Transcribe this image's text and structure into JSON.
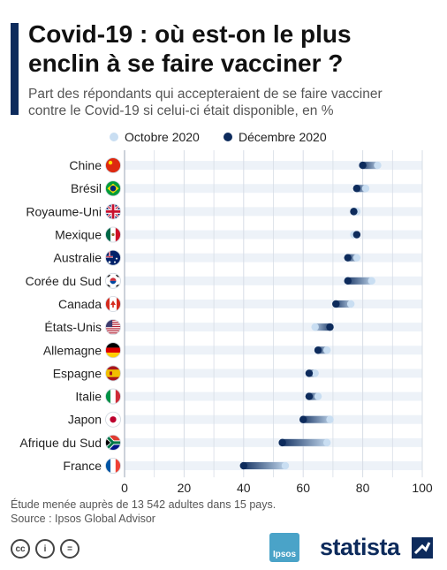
{
  "header": {
    "title_lines": [
      "Covid-19 : où est-on le plus",
      "enclin à se faire vacciner ?"
    ],
    "subtitle_lines": [
      "Part des répondants qui accepteraient de se faire vacciner",
      "contre le Covid-19 si celui-ci était disponible, en %"
    ]
  },
  "colors": {
    "accent": "#0d2b5c",
    "october": "#c9def2",
    "december": "#0d2b5c",
    "track": "#edf2f8"
  },
  "chart_data": {
    "type": "dumbbell",
    "xlim": [
      0,
      100
    ],
    "xticks": [
      "0",
      "20",
      "40",
      "60",
      "80",
      "100"
    ],
    "legend": {
      "placement": "top",
      "entries": [
        "Octobre 2020",
        "Décembre 2020"
      ]
    },
    "series": [
      {
        "name": "Octobre 2020",
        "values": [
          85,
          81,
          78,
          77,
          78,
          83,
          76,
          64,
          68,
          64,
          65,
          69,
          68,
          54
        ]
      },
      {
        "name": "Décembre 2020",
        "values": [
          80,
          78,
          77,
          78,
          75,
          75,
          71,
          69,
          65,
          62,
          62,
          60,
          53,
          40
        ]
      }
    ],
    "categories": [
      "Chine",
      "Brésil",
      "Royaume-Uni",
      "Mexique",
      "Australie",
      "Corée du Sud",
      "Canada",
      "États-Unis",
      "Allemagne",
      "Espagne",
      "Italie",
      "Japon",
      "Afrique du Sud",
      "France"
    ],
    "flags": [
      "cn",
      "br",
      "gb",
      "mx",
      "au",
      "kr",
      "ca",
      "us",
      "de",
      "es",
      "it",
      "jp",
      "za",
      "fr"
    ],
    "grid": true
  },
  "footer": {
    "note": "Étude menée auprès de 13 542 adultes dans 15 pays.",
    "source": "Source : Ipsos Global Advisor",
    "ipsos_label": "Ipsos",
    "brand": "statista",
    "cc_labels": [
      "cc",
      "i",
      "="
    ]
  }
}
